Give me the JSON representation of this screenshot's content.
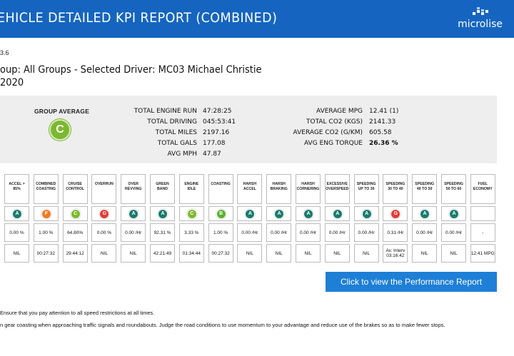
{
  "header": {
    "title": "EHICLE DETAILED KPI REPORT (COMBINED)",
    "logo_text": "microlise"
  },
  "report": {
    "version": "3.6",
    "group_line": "oup: All Groups - Selected Driver: MC03 Michael Christie",
    "date_line": "2020"
  },
  "summary": {
    "group_average_label": "GROUP AVERAGE",
    "group_average_grade": "C",
    "left_stats": [
      {
        "label": "TOTAL ENGINE RUN",
        "value": "47:28:25"
      },
      {
        "label": "TOTAL DRIVING",
        "value": "045:53:41"
      },
      {
        "label": "TOTAL MILES",
        "value": "2197.16"
      },
      {
        "label": "TOTAL GALS",
        "value": "177.08"
      },
      {
        "label": "AVG MPH",
        "value": "47.87"
      }
    ],
    "right_stats": [
      {
        "label": "AVERAGE MPG",
        "value": "12.41 (1)"
      },
      {
        "label": "TOTAL CO2 (KGS)",
        "value": "2141.33"
      },
      {
        "label": "AVERAGE CO2 (G/KM)",
        "value": "605.58"
      },
      {
        "label": "AVG ENG TORQUE",
        "value": "26.36 %"
      }
    ]
  },
  "colors": {
    "A": "#1a7a6e",
    "B": "#5ab030",
    "C": "#7cb82f",
    "F": "#f07a22",
    "G": "#e53935"
  },
  "kpis": [
    {
      "label": "ACCEL > 85%",
      "grade": "A",
      "value": "0.00 %",
      "time": "NIL"
    },
    {
      "label": "COMBINED COASTING",
      "grade": "F",
      "value": "1.00 %",
      "time": "00:27:32"
    },
    {
      "label": "CRUISE CONTROL",
      "grade": "C",
      "value": "64.80%",
      "time": "29:44:12"
    },
    {
      "label": "OVERRUN",
      "grade": "G",
      "value": "0.00 %",
      "time": "NIL"
    },
    {
      "label": "OVER REVVING",
      "grade": "A",
      "value": "0.00 /Hr",
      "time": "NIL"
    },
    {
      "label": "GREEN BAND",
      "grade": "A",
      "value": "92.31 %",
      "time": "42:21:49"
    },
    {
      "label": "ENGINE IDLE",
      "grade": "C",
      "value": "3.33 %",
      "time": "01:34:44"
    },
    {
      "label": "COASTING",
      "grade": "B",
      "value": "1.00 %",
      "time": "00:27:32"
    },
    {
      "label": "HARSH ACCEL",
      "grade": "A",
      "value": "0.00 /Hr",
      "time": "NIL"
    },
    {
      "label": "HARSH BRAKING",
      "grade": "A",
      "value": "0.00 /Hr",
      "time": "NIL"
    },
    {
      "label": "HARSH CORNERING",
      "grade": "A",
      "value": "0.00 /Hr",
      "time": "NIL"
    },
    {
      "label": "EXCESSIVE OVERSPEED",
      "grade": "A",
      "value": "0.00 /Hr",
      "time": "NIL"
    },
    {
      "label": "SPEEDING UP TO 30",
      "grade": "A",
      "value": "0.00 /Hr",
      "time": "NIL"
    },
    {
      "label": "SPEEDING 30 TO 40",
      "grade": "G",
      "value": "0.31 /Hr",
      "time": "Av. Interv 03:16:42"
    },
    {
      "label": "SPEEDING 40 TO 50",
      "grade": "A",
      "value": "0.00 /Hr",
      "time": "NIL"
    },
    {
      "label": "SPEEDING 50 TO 60",
      "grade": "A",
      "value": "0.00 /Hr",
      "time": "NIL"
    },
    {
      "label": "FUEL ECONOMY",
      "grade": "",
      "value": "-",
      "time": "12.41 MPG"
    }
  ],
  "performance_button": "Click to view the Performance Report",
  "tips": [
    "Ensure that you pay attention to all speed restrictions at all times.",
    "n gear coasting when approaching traffic signals and roundabouts. Judge the road conditions to use momentum to your advantage and reduce use of the brakes so as to make fewer stops."
  ]
}
